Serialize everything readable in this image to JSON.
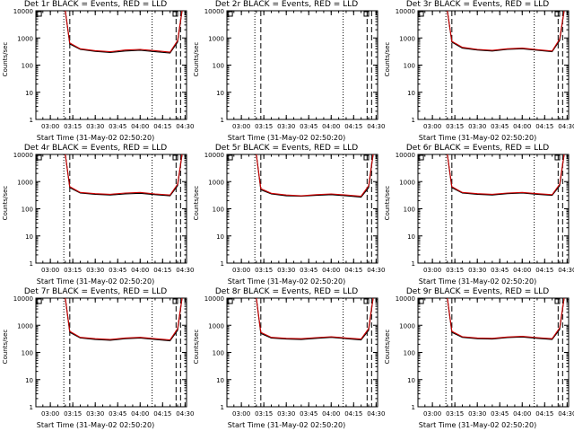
{
  "colors": {
    "events": "#000000",
    "lld": "#cc0000",
    "axis": "#000000"
  },
  "shared_labels": {
    "ylabel": "Counts/sec",
    "xlabel": "Start Time (31-May-02 02:50:20)"
  },
  "x_ticks": [
    "03:00",
    "03:15",
    "03:30",
    "03:45",
    "04:00",
    "04:15",
    "04:30"
  ],
  "y_ticks": [
    "1",
    "10",
    "100",
    "1000",
    "10000"
  ],
  "chart_data": [
    {
      "type": "line",
      "title": "Det 1r BLACK = Events, RED = LLD",
      "ylabel": "Counts/sec",
      "xlabel": "Start Time (31-May-02 02:50:20)",
      "xlim": [
        "02:50:20",
        "04:31"
      ],
      "ylim": [
        1,
        10000
      ],
      "yscale": "log",
      "x": [
        "03:10",
        "03:13",
        "03:20",
        "03:30",
        "03:40",
        "03:50",
        "04:00",
        "04:10",
        "04:20",
        "04:25",
        "04:28"
      ],
      "series": [
        {
          "name": "BLACK = Events",
          "values": [
            10000,
            600,
            380,
            320,
            290,
            330,
            350,
            310,
            280,
            700,
            10000
          ]
        },
        {
          "name": "RED = LLD",
          "values": [
            10000,
            650,
            400,
            340,
            310,
            360,
            380,
            340,
            300,
            800,
            10000
          ]
        }
      ],
      "markers": {
        "dotted": [
          "03:09",
          "04:08"
        ],
        "dashed": [
          "03:13",
          "04:24",
          "04:27"
        ],
        "boxes": [
          "02:51",
          "04:22"
        ]
      }
    },
    {
      "type": "line",
      "title": "Det 2r BLACK = Events, RED = LLD",
      "ylabel": "Counts/sec",
      "xlabel": "Start Time (31-May-02 02:50:20)",
      "xlim": [
        "02:50:20",
        "04:31"
      ],
      "ylim": [
        1,
        10000
      ],
      "yscale": "log",
      "x": [],
      "series": [],
      "markers": {
        "dotted": [
          "03:09",
          "04:08"
        ],
        "dashed": [
          "03:13",
          "04:24",
          "04:27"
        ],
        "boxes": [
          "02:51",
          "04:22"
        ]
      }
    },
    {
      "type": "line",
      "title": "Det 3r BLACK = Events, RED = LLD",
      "ylabel": "Counts/sec",
      "xlabel": "Start Time (31-May-02 02:50:20)",
      "xlim": [
        "02:50:20",
        "04:31"
      ],
      "ylim": [
        1,
        10000
      ],
      "yscale": "log",
      "x": [
        "03:10",
        "03:13",
        "03:20",
        "03:30",
        "03:40",
        "03:50",
        "04:00",
        "04:10",
        "04:20",
        "04:25",
        "04:28"
      ],
      "series": [
        {
          "name": "BLACK = Events",
          "values": [
            10000,
            700,
            420,
            360,
            330,
            380,
            400,
            350,
            310,
            800,
            10000
          ]
        },
        {
          "name": "RED = LLD",
          "values": [
            10000,
            750,
            450,
            380,
            350,
            400,
            420,
            370,
            330,
            900,
            10000
          ]
        }
      ],
      "markers": {
        "dotted": [
          "03:09",
          "04:08"
        ],
        "dashed": [
          "03:13",
          "04:24",
          "04:27"
        ],
        "boxes": [
          "02:51",
          "04:22"
        ]
      }
    },
    {
      "type": "line",
      "title": "Det 4r BLACK = Events, RED = LLD",
      "ylabel": "Counts/sec",
      "xlabel": "Start Time (31-May-02 02:50:20)",
      "xlim": [
        "02:50:20",
        "04:31"
      ],
      "ylim": [
        1,
        10000
      ],
      "yscale": "log",
      "x": [
        "03:10",
        "03:13",
        "03:20",
        "03:30",
        "03:40",
        "03:50",
        "04:00",
        "04:10",
        "04:20",
        "04:25",
        "04:28"
      ],
      "series": [
        {
          "name": "BLACK = Events",
          "values": [
            10000,
            600,
            380,
            340,
            320,
            350,
            370,
            330,
            300,
            700,
            10000
          ]
        },
        {
          "name": "RED = LLD",
          "values": [
            10000,
            650,
            400,
            360,
            340,
            380,
            400,
            350,
            320,
            800,
            10000
          ]
        }
      ],
      "markers": {
        "dotted": [
          "03:09",
          "04:08"
        ],
        "dashed": [
          "03:13",
          "04:24",
          "04:27"
        ],
        "boxes": [
          "02:51",
          "04:22"
        ]
      }
    },
    {
      "type": "line",
      "title": "Det 5r BLACK = Events, RED = LLD",
      "ylabel": "Counts/sec",
      "xlabel": "Start Time (31-May-02 02:50:20)",
      "xlim": [
        "02:50:20",
        "04:31"
      ],
      "ylim": [
        1,
        10000
      ],
      "yscale": "log",
      "x": [
        "03:10",
        "03:13",
        "03:20",
        "03:30",
        "03:40",
        "03:50",
        "04:00",
        "04:10",
        "04:20",
        "04:25",
        "04:28"
      ],
      "series": [
        {
          "name": "BLACK = Events",
          "values": [
            10000,
            500,
            350,
            300,
            290,
            310,
            330,
            300,
            270,
            600,
            10000
          ]
        },
        {
          "name": "RED = LLD",
          "values": [
            10000,
            550,
            370,
            320,
            300,
            330,
            350,
            320,
            290,
            700,
            10000
          ]
        }
      ],
      "markers": {
        "dotted": [
          "03:09",
          "04:08"
        ],
        "dashed": [
          "03:13",
          "04:24",
          "04:27"
        ],
        "boxes": [
          "02:51",
          "04:22"
        ]
      }
    },
    {
      "type": "line",
      "title": "Det 6r BLACK = Events, RED = LLD",
      "ylabel": "Counts/sec",
      "xlabel": "Start Time (31-May-02 02:50:20)",
      "xlim": [
        "02:50:20",
        "04:31"
      ],
      "ylim": [
        1,
        10000
      ],
      "yscale": "log",
      "x": [
        "03:10",
        "03:13",
        "03:20",
        "03:30",
        "03:40",
        "03:50",
        "04:00",
        "04:10",
        "04:20",
        "04:25",
        "04:28"
      ],
      "series": [
        {
          "name": "BLACK = Events",
          "values": [
            10000,
            600,
            380,
            340,
            320,
            360,
            380,
            340,
            310,
            700,
            10000
          ]
        },
        {
          "name": "RED = LLD",
          "values": [
            10000,
            650,
            400,
            360,
            340,
            380,
            400,
            360,
            330,
            800,
            10000
          ]
        }
      ],
      "markers": {
        "dotted": [
          "03:09",
          "04:08"
        ],
        "dashed": [
          "03:13",
          "04:24",
          "04:27"
        ],
        "boxes": [
          "02:51",
          "04:22"
        ]
      }
    },
    {
      "type": "line",
      "title": "Det 7r BLACK = Events, RED = LLD",
      "ylabel": "Counts/sec",
      "xlabel": "Start Time (31-May-02 02:50:20)",
      "xlim": [
        "02:50:20",
        "04:31"
      ],
      "ylim": [
        1,
        10000
      ],
      "yscale": "log",
      "x": [
        "03:10",
        "03:13",
        "03:20",
        "03:30",
        "03:40",
        "03:50",
        "04:00",
        "04:10",
        "04:20",
        "04:25",
        "04:28"
      ],
      "series": [
        {
          "name": "BLACK = Events",
          "values": [
            10000,
            550,
            340,
            300,
            280,
            320,
            340,
            300,
            270,
            650,
            10000
          ]
        },
        {
          "name": "RED = LLD",
          "values": [
            10000,
            600,
            360,
            320,
            300,
            340,
            360,
            320,
            290,
            750,
            10000
          ]
        }
      ],
      "markers": {
        "dotted": [
          "03:09",
          "04:08"
        ],
        "dashed": [
          "03:13",
          "04:24",
          "04:27"
        ],
        "boxes": [
          "02:51",
          "04:22"
        ]
      }
    },
    {
      "type": "line",
      "title": "Det 8r BLACK = Events, RED = LLD",
      "ylabel": "Counts/sec",
      "xlabel": "Start Time (31-May-02 02:50:20)",
      "xlim": [
        "02:50:20",
        "04:31"
      ],
      "ylim": [
        1,
        10000
      ],
      "yscale": "log",
      "x": [
        "03:10",
        "03:13",
        "03:20",
        "03:30",
        "03:40",
        "03:50",
        "04:00",
        "04:10",
        "04:20",
        "04:25",
        "04:28"
      ],
      "series": [
        {
          "name": "BLACK = Events",
          "values": [
            10000,
            500,
            340,
            310,
            300,
            330,
            360,
            320,
            290,
            650,
            10000
          ]
        },
        {
          "name": "RED = LLD",
          "values": [
            10000,
            550,
            360,
            330,
            320,
            350,
            380,
            340,
            310,
            750,
            10000
          ]
        }
      ],
      "markers": {
        "dotted": [
          "03:09",
          "04:08"
        ],
        "dashed": [
          "03:13",
          "04:24",
          "04:27"
        ],
        "boxes": [
          "02:51",
          "04:22"
        ]
      }
    },
    {
      "type": "line",
      "title": "Det 9r BLACK = Events, RED = LLD",
      "ylabel": "Counts/sec",
      "xlabel": "Start Time (31-May-02 02:50:20)",
      "xlim": [
        "02:50:20",
        "04:31"
      ],
      "ylim": [
        1,
        10000
      ],
      "yscale": "log",
      "x": [
        "03:10",
        "03:13",
        "03:20",
        "03:30",
        "03:40",
        "03:50",
        "04:00",
        "04:10",
        "04:20",
        "04:25",
        "04:28"
      ],
      "series": [
        {
          "name": "BLACK = Events",
          "values": [
            10000,
            550,
            360,
            320,
            310,
            350,
            370,
            330,
            300,
            700,
            10000
          ]
        },
        {
          "name": "RED = LLD",
          "values": [
            10000,
            600,
            380,
            340,
            330,
            370,
            390,
            350,
            320,
            800,
            10000
          ]
        }
      ],
      "markers": {
        "dotted": [
          "03:09",
          "04:08"
        ],
        "dashed": [
          "03:13",
          "04:24",
          "04:27"
        ],
        "boxes": [
          "02:51",
          "04:22"
        ]
      }
    }
  ]
}
